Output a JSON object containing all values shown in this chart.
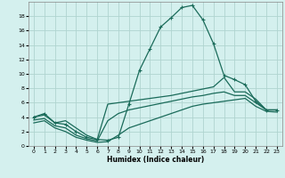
{
  "xlabel": "Humidex (Indice chaleur)",
  "background_color": "#d4f0ee",
  "grid_color": "#b0d4d0",
  "line_color": "#1a6b5a",
  "xlim": [
    -0.5,
    23.5
  ],
  "ylim": [
    0,
    20
  ],
  "xticks": [
    0,
    1,
    2,
    3,
    4,
    5,
    6,
    7,
    8,
    9,
    10,
    11,
    12,
    13,
    14,
    15,
    16,
    17,
    18,
    19,
    20,
    21,
    22,
    23
  ],
  "yticks": [
    0,
    2,
    4,
    6,
    8,
    10,
    12,
    14,
    16,
    18
  ],
  "lines": [
    {
      "x": [
        0,
        1,
        2,
        3,
        4,
        5,
        6,
        7,
        8,
        9,
        10,
        11,
        12,
        13,
        14,
        15,
        16,
        17,
        18,
        19,
        20,
        21,
        22,
        23
      ],
      "y": [
        4.0,
        4.5,
        3.2,
        3.0,
        2.0,
        1.2,
        0.9,
        0.8,
        1.2,
        5.8,
        10.5,
        13.5,
        16.5,
        17.8,
        19.2,
        19.5,
        17.5,
        14.2,
        9.8,
        9.2,
        8.5,
        6.2,
        5.0,
        5.0
      ],
      "marker": "+"
    },
    {
      "x": [
        0,
        1,
        2,
        3,
        4,
        5,
        6,
        7,
        8,
        9,
        10,
        11,
        12,
        13,
        14,
        15,
        16,
        17,
        18,
        19,
        20,
        21,
        22,
        23
      ],
      "y": [
        4.0,
        4.3,
        3.2,
        3.5,
        2.5,
        1.5,
        0.9,
        5.8,
        6.0,
        6.2,
        6.4,
        6.6,
        6.8,
        7.0,
        7.3,
        7.6,
        7.9,
        8.2,
        9.5,
        7.5,
        7.5,
        6.5,
        5.0,
        5.0
      ],
      "marker": null
    },
    {
      "x": [
        0,
        1,
        2,
        3,
        4,
        5,
        6,
        7,
        8,
        9,
        10,
        11,
        12,
        13,
        14,
        15,
        16,
        17,
        18,
        19,
        20,
        21,
        22,
        23
      ],
      "y": [
        3.6,
        3.8,
        2.8,
        2.5,
        1.5,
        1.0,
        0.7,
        3.5,
        4.5,
        5.0,
        5.3,
        5.6,
        5.9,
        6.2,
        6.5,
        6.8,
        7.0,
        7.3,
        7.5,
        7.0,
        7.0,
        6.0,
        5.0,
        5.0
      ],
      "marker": null
    },
    {
      "x": [
        0,
        1,
        2,
        3,
        4,
        5,
        6,
        7,
        8,
        9,
        10,
        11,
        12,
        13,
        14,
        15,
        16,
        17,
        18,
        19,
        20,
        21,
        22,
        23
      ],
      "y": [
        3.2,
        3.5,
        2.5,
        2.0,
        1.2,
        0.8,
        0.5,
        0.6,
        1.5,
        2.5,
        3.0,
        3.5,
        4.0,
        4.5,
        5.0,
        5.5,
        5.8,
        6.0,
        6.2,
        6.4,
        6.6,
        5.5,
        4.8,
        4.7
      ],
      "marker": null
    }
  ]
}
